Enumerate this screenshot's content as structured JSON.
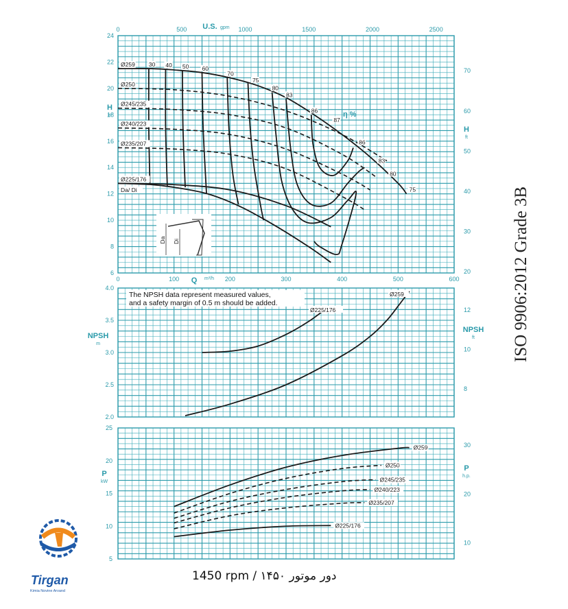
{
  "colors": {
    "grid": "#3aaab8",
    "curve": "#1a1a1a",
    "logo_blue": "#1f5aa8",
    "logo_orange": "#f08a1c"
  },
  "header": {
    "standard": "ISO 9906:2012 Grade 3B",
    "speed": "1450 rpm / ۱۴۵۰ دور موتور"
  },
  "logo": {
    "icon": "tirgan-gear-logo-icon",
    "name": "Tirgan",
    "tagline": "Kimia Novine Arvand"
  },
  "chart_data": [
    {
      "type": "line",
      "id": "head",
      "ylabel": "H",
      "ylabel_unit": "m",
      "y2label": "H",
      "y2label_unit": "ft",
      "xlabel": "Q",
      "xlabel_unit": "m³/h",
      "x2label": "U.S.",
      "x2label_unit": "gpm",
      "xlim": [
        0,
        600
      ],
      "ylim": [
        6,
        24
      ],
      "x_ticks": [
        0,
        100,
        200,
        300,
        400,
        500,
        600
      ],
      "y_ticks": [
        6,
        8,
        10,
        12,
        14,
        16,
        18,
        20,
        22,
        24
      ],
      "x2_ticks": [
        0,
        500,
        1000,
        1500,
        2000,
        2500
      ],
      "y2_ticks": [
        20,
        30,
        40,
        50,
        60,
        70
      ],
      "eta_label": "η %",
      "series": [
        {
          "name": "Ø259",
          "style": "solid",
          "x": [
            0,
            60,
            100,
            150,
            200,
            250,
            300,
            350,
            400,
            450,
            500,
            515
          ],
          "y": [
            21.5,
            21.5,
            21.4,
            21.2,
            20.8,
            20.2,
            19.3,
            18.0,
            16.5,
            14.8,
            12.8,
            12.0
          ]
        },
        {
          "name": "Ø250",
          "style": "dashed",
          "x": [
            0,
            100,
            200,
            300,
            400,
            480
          ],
          "y": [
            20.0,
            19.9,
            19.4,
            18.3,
            16.5,
            14.5
          ]
        },
        {
          "name": "Ø245/235",
          "style": "dashed",
          "x": [
            0,
            100,
            200,
            300,
            400,
            460
          ],
          "y": [
            18.5,
            18.4,
            18.0,
            17.0,
            15.0,
            13.3
          ]
        },
        {
          "name": "Ø240/223",
          "style": "dashed",
          "x": [
            0,
            100,
            200,
            300,
            400,
            450
          ],
          "y": [
            17.0,
            16.9,
            16.5,
            15.4,
            13.5,
            12.3
          ]
        },
        {
          "name": "Ø235/207",
          "style": "dashed",
          "x": [
            0,
            100,
            200,
            300,
            400,
            440
          ],
          "y": [
            15.5,
            15.4,
            15.0,
            13.9,
            11.8,
            10.8
          ]
        },
        {
          "name": "Ø225/176",
          "style": "solid",
          "x": [
            0,
            100,
            200,
            300,
            380
          ],
          "y": [
            12.8,
            12.7,
            12.3,
            11.1,
            9.5
          ]
        }
      ],
      "limit_curve": {
        "x": [
          0,
          100,
          200,
          300,
          380
        ],
        "y": [
          12.8,
          12.7,
          12.3,
          11.1,
          9.5
        ]
      },
      "lower_envelope": {
        "x": [
          0,
          60,
          100,
          160,
          220,
          280,
          340,
          380
        ],
        "y": [
          12.8,
          12.7,
          12.5,
          12.0,
          11.0,
          9.6,
          8.0,
          6.8
        ]
      },
      "efficiency_lines": [
        {
          "label": "30",
          "x": [
            55,
            55,
            57
          ],
          "y": [
            21.5,
            17.0,
            12.7
          ]
        },
        {
          "label": "40",
          "x": [
            85,
            85,
            88
          ],
          "y": [
            21.45,
            17.0,
            12.6
          ]
        },
        {
          "label": "50",
          "x": [
            115,
            116,
            120
          ],
          "y": [
            21.35,
            17.0,
            12.5
          ]
        },
        {
          "label": "60",
          "x": [
            150,
            152,
            158
          ],
          "y": [
            21.2,
            17.0,
            12.0
          ]
        },
        {
          "label": "70",
          "x": [
            195,
            198,
            205,
            215
          ],
          "y": [
            20.8,
            17.0,
            13.5,
            11.2
          ]
        },
        {
          "label": "75",
          "x": [
            232,
            236,
            243,
            255,
            260
          ],
          "y": [
            20.4,
            17.0,
            14.0,
            11.0,
            10.0
          ]
        }
      ],
      "efficiency_islands": [
        {
          "label": "80",
          "x": [
            275,
            282,
            292,
            312,
            340,
            380,
            410,
            425,
            400,
            390,
            360,
            350
          ],
          "y": [
            19.7,
            16.5,
            13.0,
            10.8,
            9.8,
            10.2,
            11.5,
            12.0,
            8.2,
            7.4,
            8.0,
            8.4
          ],
          "label_right": "80"
        },
        {
          "label": "83",
          "x": [
            300,
            308,
            320,
            345,
            380,
            410,
            430,
            440
          ],
          "y": [
            19.2,
            15.5,
            12.7,
            11.2,
            11.3,
            12.8,
            13.7,
            14.0
          ]
        },
        {
          "label": "86",
          "x": [
            345,
            348,
            360,
            385,
            410,
            420
          ],
          "y": [
            18.0,
            15.8,
            14.0,
            13.4,
            14.5,
            15.5
          ]
        },
        {
          "label": "87",
          "x": [
            388
          ],
          "y": [
            17.2
          ]
        }
      ],
      "iso_eff_labels": [
        {
          "text": "30",
          "x": 55,
          "y": 21.5
        },
        {
          "text": "40",
          "x": 85,
          "y": 21.45
        },
        {
          "text": "50",
          "x": 115,
          "y": 21.35
        },
        {
          "text": "60",
          "x": 150,
          "y": 21.2
        },
        {
          "text": "70",
          "x": 195,
          "y": 20.8
        },
        {
          "text": "75",
          "x": 240,
          "y": 20.3
        },
        {
          "text": "80",
          "x": 275,
          "y": 19.7
        },
        {
          "text": "83",
          "x": 300,
          "y": 19.2
        },
        {
          "text": "86",
          "x": 345,
          "y": 18.0
        },
        {
          "text": "87",
          "x": 385,
          "y": 17.3
        },
        {
          "text": "86",
          "x": 430,
          "y": 15.6
        },
        {
          "text": "83",
          "x": 465,
          "y": 14.2
        },
        {
          "text": "80",
          "x": 485,
          "y": 13.2
        },
        {
          "text": "75",
          "x": 520,
          "y": 12.0
        }
      ],
      "diameter_labels": [
        "Ø259",
        "Ø250",
        "Ø245/235",
        "Ø240/223",
        "Ø235/207",
        "Ø225/176",
        "Da/ Di"
      ],
      "inset_labels": [
        "Da",
        "Di"
      ]
    },
    {
      "type": "line",
      "id": "npsh",
      "ylabel": "NPSH",
      "ylabel_unit": "m",
      "y2label": "NPSH",
      "y2label_unit": "ft",
      "xlim": [
        0,
        600
      ],
      "ylim": [
        2.0,
        4.0
      ],
      "y_ticks": [
        2.0,
        2.5,
        3.0,
        3.5,
        4.0
      ],
      "y2_ticks": [
        8,
        10,
        12
      ],
      "note": [
        "The NPSH data represent measured values,",
        "and a safety margin of 0.5 m should be added."
      ],
      "series": [
        {
          "name": "Ø225/176",
          "x": [
            150,
            200,
            250,
            300,
            340,
            370
          ],
          "y": [
            3.0,
            3.02,
            3.1,
            3.28,
            3.48,
            3.67
          ]
        },
        {
          "name": "Ø259",
          "x": [
            120,
            200,
            300,
            400,
            450,
            480,
            500,
            520
          ],
          "y": [
            2.02,
            2.2,
            2.5,
            2.95,
            3.25,
            3.5,
            3.72,
            3.95
          ]
        }
      ]
    },
    {
      "type": "line",
      "id": "power",
      "ylabel": "P",
      "ylabel_unit": "kW",
      "y2label": "P",
      "y2label_unit": "h.p.",
      "xlim": [
        0,
        600
      ],
      "ylim": [
        5,
        25
      ],
      "y_ticks": [
        5,
        10,
        15,
        20,
        25
      ],
      "y2_ticks": [
        10,
        20,
        30
      ],
      "series": [
        {
          "name": "Ø259",
          "style": "solid",
          "x": [
            100,
            200,
            300,
            400,
            500,
            520
          ],
          "y": [
            13.0,
            16.3,
            19.0,
            20.8,
            21.9,
            22.0
          ]
        },
        {
          "name": "Ø250",
          "style": "dashed",
          "x": [
            100,
            200,
            300,
            400,
            470
          ],
          "y": [
            12.0,
            15.0,
            17.3,
            18.8,
            19.3
          ]
        },
        {
          "name": "Ø245/235",
          "style": "dashed",
          "x": [
            100,
            200,
            300,
            400,
            460
          ],
          "y": [
            11.2,
            13.8,
            15.6,
            16.8,
            17.1
          ]
        },
        {
          "name": "Ø240/223",
          "style": "dashed",
          "x": [
            100,
            200,
            300,
            400,
            450
          ],
          "y": [
            10.5,
            12.8,
            14.4,
            15.4,
            15.6
          ]
        },
        {
          "name": "Ø235/207",
          "style": "dashed",
          "x": [
            100,
            200,
            300,
            400,
            440
          ],
          "y": [
            9.6,
            11.6,
            12.8,
            13.5,
            13.6
          ]
        },
        {
          "name": "Ø225/176",
          "style": "solid",
          "x": [
            100,
            200,
            300,
            380
          ],
          "y": [
            8.4,
            9.4,
            10.0,
            10.1
          ]
        }
      ]
    }
  ]
}
